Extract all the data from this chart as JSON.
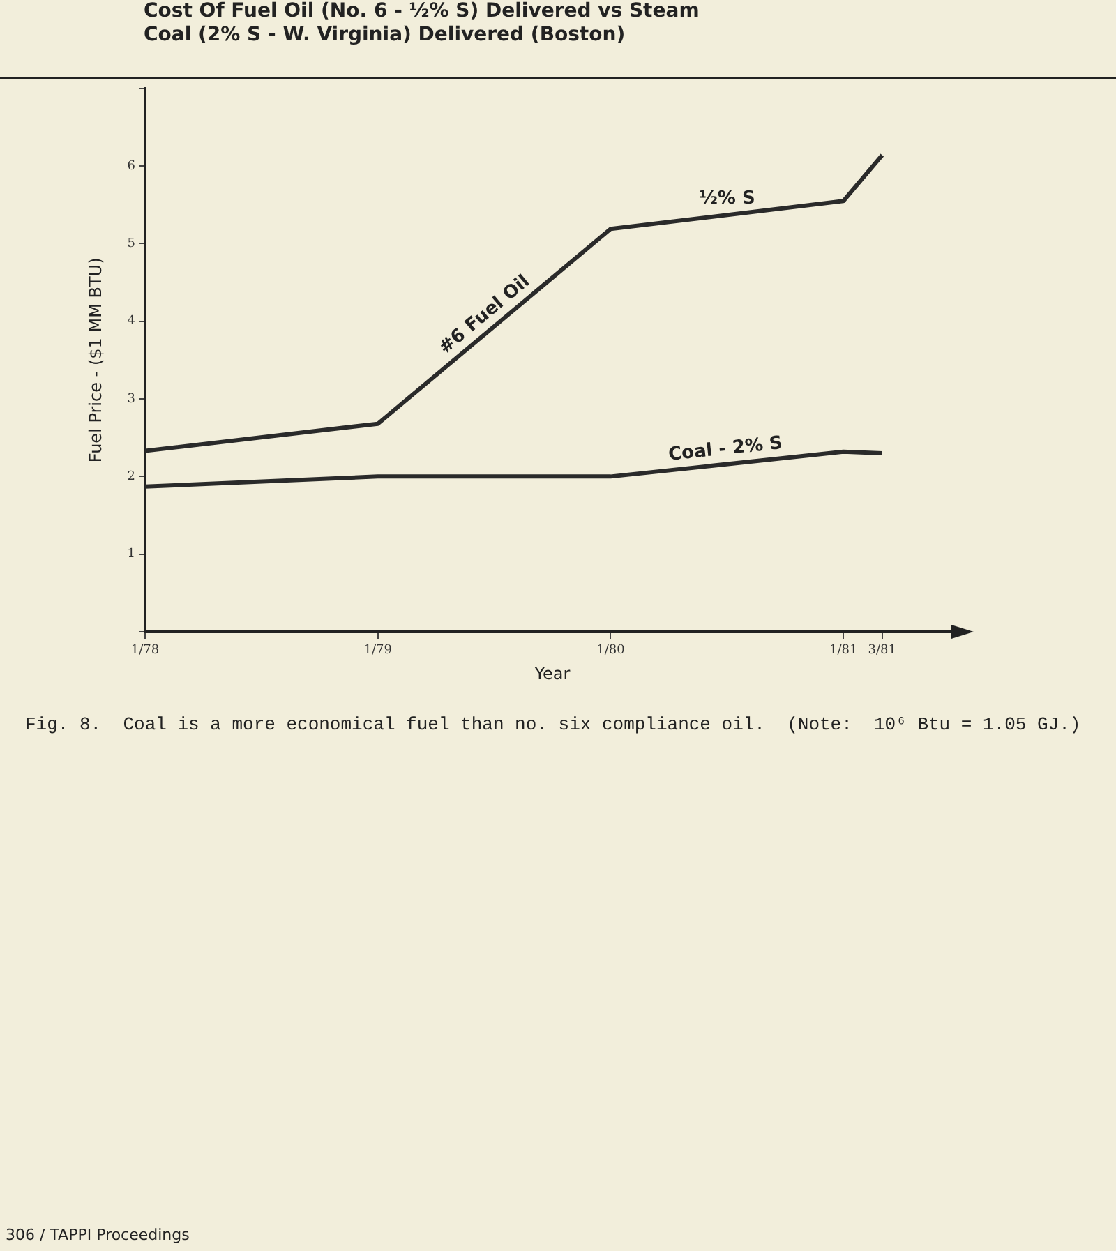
{
  "chart_data": {
    "type": "line",
    "title": "Cost Of Fuel Oil (No. 6 - ½% S) Delivered vs Steam Coal (2% S - W. Virginia) Delivered (Boston)",
    "xlabel": "Year",
    "ylabel": "Fuel Price - ($1 MM BTU)",
    "xlim": [
      "1978-01",
      "1981-07"
    ],
    "xticks": [
      {
        "value": "1978-01",
        "label": "1/78"
      },
      {
        "value": "1979-01",
        "label": "1/79"
      },
      {
        "value": "1980-01",
        "label": "1/80"
      },
      {
        "value": "1981-01",
        "label": "1/81"
      },
      {
        "value": "1981-03",
        "label": "3/81"
      }
    ],
    "ylim": [
      0,
      7
    ],
    "yticks": [
      {
        "value": 0,
        "label": null
      },
      1,
      2,
      3,
      4,
      5,
      6,
      {
        "value": 7,
        "label": null
      }
    ],
    "series": [
      {
        "name": "#6 Fuel Oil",
        "color": "#2a2a2a",
        "x": [
          "1978-01",
          "1979-01",
          "1980-01",
          "1981-01",
          "1981-03"
        ],
        "values": [
          2.33,
          2.68,
          5.19,
          5.55,
          6.14
        ]
      },
      {
        "name": "Coal - 2% S",
        "color": "#2a2a2a",
        "x": [
          "1978-01",
          "1979-01",
          "1980-01",
          "1981-01",
          "1981-03"
        ],
        "values": [
          1.87,
          2.0,
          2.0,
          2.32,
          2.3
        ]
      }
    ],
    "annotations": [
      {
        "text": "½% S",
        "x": "1980-07",
        "y": 5.37
      },
      "Fig. 8.  Coal is a more economical fuel than no. six compliance oil.  (Note:  10⁶ Btu = 1.05 GJ.)",
      "306 / TAPPI Proceedings"
    ],
    "grid": false,
    "legend": false,
    "marker": "none",
    "line_style": "solid"
  }
}
